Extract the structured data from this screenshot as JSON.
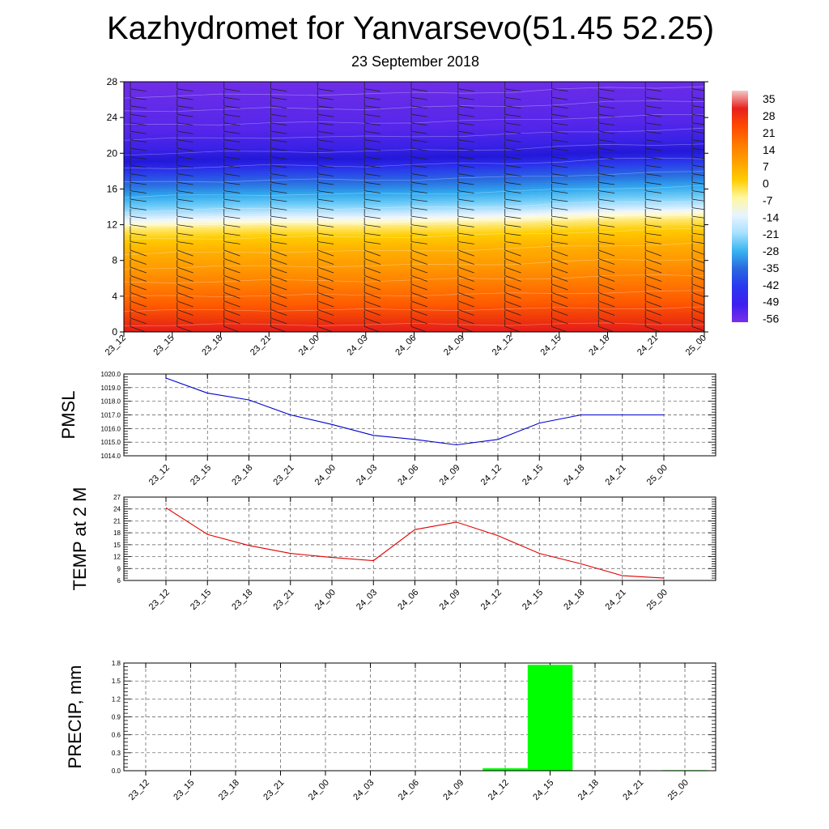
{
  "title": "Kazhydromet for Yanvarsevo(51.45 52.25)",
  "subtitle": "23 September 2018",
  "time_labels": [
    "23_12",
    "23_15",
    "23_18",
    "23_21",
    "24_00",
    "24_03",
    "24_06",
    "24_09",
    "24_12",
    "24_15",
    "24_18",
    "24_21",
    "25_00"
  ],
  "chart_data": [
    {
      "type": "heatmap",
      "name": "temperature-cross-section",
      "x": [
        "23_12",
        "23_15",
        "23_18",
        "23_21",
        "24_00",
        "24_03",
        "24_06",
        "24_09",
        "24_12",
        "24_15",
        "24_18",
        "24_21",
        "25_00"
      ],
      "y_ticks": [
        0,
        4,
        8,
        12,
        16,
        20,
        24,
        28
      ],
      "ylim": [
        0,
        28
      ],
      "colorbar": {
        "labels": [
          "35",
          "28",
          "21",
          "14",
          "7",
          "0",
          "-7",
          "-14",
          "-21",
          "-28",
          "-35",
          "-42",
          "-49",
          "-56"
        ],
        "colors": [
          "#f2c8c8",
          "#e8201e",
          "#ff4a00",
          "#ff7a00",
          "#ffa100",
          "#ffcc00",
          "#fff8a0",
          "#e8f4ff",
          "#a8e0ff",
          "#38b4f0",
          "#2a68e0",
          "#2838f0",
          "#3d1ff0",
          "#7a2ee8"
        ]
      },
      "zero_isotherm_level": [
        12.3,
        12.4,
        12.5,
        12.6,
        12.6,
        12.6,
        12.7,
        12.8,
        12.9,
        13.1,
        13.3,
        13.4,
        13.5
      ],
      "cold_core_level": 19,
      "wind_barbs": true
    },
    {
      "type": "line",
      "name": "pmsl",
      "ylabel": "PMSL",
      "x": [
        "23_12",
        "23_15",
        "23_18",
        "23_21",
        "24_00",
        "24_03",
        "24_06",
        "24_09",
        "24_12",
        "24_15",
        "24_18",
        "24_21",
        "25_00"
      ],
      "values": [
        1019.7,
        1018.6,
        1018.1,
        1017.0,
        1016.3,
        1015.5,
        1015.2,
        1014.8,
        1015.2,
        1016.4,
        1017.0,
        1017.0,
        1017.0
      ],
      "ylim": [
        1014.0,
        1020.0
      ],
      "y_ticks": [
        "1014.0",
        "1015.0",
        "1016.0",
        "1017.0",
        "1018.0",
        "1019.0",
        "1020.0"
      ],
      "color": "#0000cc",
      "grid": true
    },
    {
      "type": "line",
      "name": "temperature-2m",
      "ylabel": "TEMP at 2 M",
      "x": [
        "23_12",
        "23_15",
        "23_18",
        "23_21",
        "24_00",
        "24_03",
        "24_06",
        "24_09",
        "24_12",
        "24_15",
        "24_18",
        "24_21",
        "25_00"
      ],
      "values": [
        24.3,
        17.6,
        14.8,
        12.8,
        11.8,
        11.0,
        18.8,
        20.7,
        17.3,
        12.8,
        10.2,
        7.2,
        6.6
      ],
      "ylim": [
        6,
        27
      ],
      "y_ticks": [
        "6",
        "9",
        "12",
        "15",
        "18",
        "21",
        "24",
        "27"
      ],
      "color": "#e00000",
      "grid": true
    },
    {
      "type": "bar",
      "name": "precipitation",
      "ylabel": "PRECIP, mm",
      "categories": [
        "23_12",
        "23_15",
        "23_18",
        "23_21",
        "24_00",
        "24_03",
        "24_06",
        "24_09",
        "24_12",
        "24_15",
        "24_18",
        "24_21",
        "25_00"
      ],
      "values": [
        0,
        0,
        0,
        0,
        0,
        0,
        0,
        0,
        0.04,
        1.77,
        0,
        0,
        0.01
      ],
      "ylim": [
        0,
        1.8
      ],
      "y_ticks": [
        "0.0",
        "0.3",
        "0.6",
        "0.9",
        "1.2",
        "1.5",
        "1.8"
      ],
      "color": "#00ff00",
      "grid": true
    }
  ]
}
